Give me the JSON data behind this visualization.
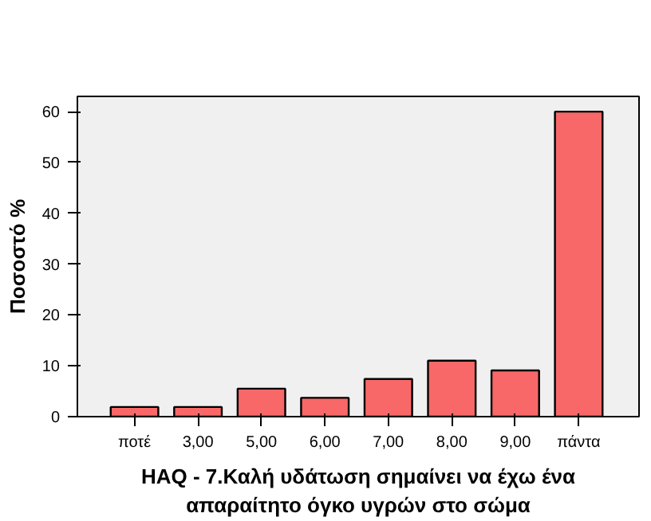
{
  "chart_data": {
    "type": "bar",
    "xlabel": "HAQ - 7.Καλή υδάτωση σημαίνει να έχω ένα\nαπαραίτητο όγκο υγρών στο σώμα",
    "ylabel": "Ποσοστό %",
    "categories": [
      "ποτέ",
      "3,00",
      "5,00",
      "6,00",
      "7,00",
      "8,00",
      "9,00",
      "πάντα"
    ],
    "values": [
      1.9,
      1.9,
      5.5,
      3.7,
      7.4,
      11.0,
      9.1,
      60.0
    ],
    "color": "#f86868",
    "ylim": [
      0,
      63
    ],
    "yticks": [
      0,
      10,
      20,
      30,
      40,
      50,
      60
    ],
    "grid": false
  }
}
